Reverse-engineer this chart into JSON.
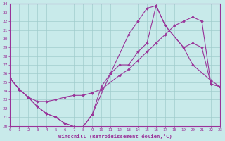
{
  "background_color": "#c8eaea",
  "grid_color": "#a0cccc",
  "line_color": "#993399",
  "xlim": [
    0,
    23
  ],
  "ylim": [
    20,
    34
  ],
  "xticks": [
    0,
    1,
    2,
    3,
    4,
    5,
    6,
    7,
    8,
    9,
    10,
    11,
    12,
    13,
    14,
    15,
    16,
    17,
    18,
    19,
    20,
    21,
    22,
    23
  ],
  "yticks": [
    20,
    21,
    22,
    23,
    24,
    25,
    26,
    27,
    28,
    29,
    30,
    31,
    32,
    33,
    34
  ],
  "xlabel": "Windchill (Refroidissement éolien,°C)",
  "line1_x": [
    0,
    1,
    2,
    3,
    4,
    5,
    6,
    7,
    8,
    9,
    11,
    13,
    14,
    15,
    16,
    17,
    19,
    20,
    22,
    23
  ],
  "line1_y": [
    25.5,
    24.2,
    23.3,
    22.2,
    21.4,
    21.0,
    20.3,
    19.9,
    19.9,
    21.3,
    26.0,
    30.5,
    32.0,
    33.5,
    33.8,
    31.5,
    29.0,
    27.0,
    25.2,
    24.5
  ],
  "line2_x": [
    0,
    1,
    2,
    3,
    4,
    5,
    6,
    7,
    8,
    9,
    10,
    12,
    13,
    14,
    15,
    16,
    17,
    18,
    19,
    20,
    21,
    22,
    23
  ],
  "line2_y": [
    25.5,
    24.2,
    23.3,
    22.8,
    22.8,
    23.0,
    23.3,
    23.5,
    23.5,
    23.8,
    24.2,
    25.8,
    26.5,
    27.5,
    28.5,
    29.5,
    30.5,
    31.5,
    32.0,
    32.5,
    32.0,
    24.8,
    24.5
  ],
  "line3_x": [
    0,
    1,
    2,
    3,
    4,
    5,
    6,
    7,
    8,
    9,
    10,
    11,
    12,
    13,
    14,
    15,
    16,
    17,
    19,
    20,
    21,
    22,
    23
  ],
  "line3_y": [
    25.5,
    24.2,
    23.3,
    22.2,
    21.4,
    21.0,
    20.3,
    19.9,
    19.9,
    21.3,
    24.5,
    26.0,
    27.0,
    27.0,
    28.5,
    29.5,
    33.8,
    31.5,
    29.0,
    29.5,
    29.0,
    24.8,
    24.5
  ]
}
